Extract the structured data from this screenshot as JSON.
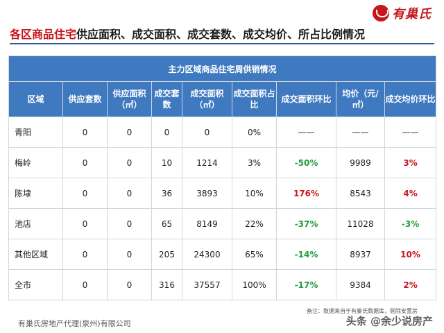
{
  "brand": {
    "logo_text": "有巢氏"
  },
  "title": {
    "highlight": "各区商品住宅",
    "rest": "供应面积、成交面积、成交套数、成交均价、所占比例情况"
  },
  "table": {
    "caption": "主力区域商品住宅周供销情况",
    "headers": [
      "区域",
      "供应套数",
      "供应面积（㎡）",
      "成交套数",
      "成交面积（㎡）",
      "成交面积占比",
      "成交面积环比",
      "均价（元/㎡）",
      "成交均价环比"
    ],
    "rows": [
      {
        "region": "青阳",
        "supply_units": "0",
        "supply_area": "0",
        "deal_units": "0",
        "deal_area": "0",
        "share": "0%",
        "area_mom": "——",
        "area_mom_tone": "",
        "avg_price": "——",
        "price_mom": "——",
        "price_mom_tone": ""
      },
      {
        "region": "梅岭",
        "supply_units": "0",
        "supply_area": "0",
        "deal_units": "10",
        "deal_area": "1214",
        "share": "3%",
        "area_mom": "-50%",
        "area_mom_tone": "neg",
        "avg_price": "9989",
        "price_mom": "3%",
        "price_mom_tone": "pos"
      },
      {
        "region": "陈埭",
        "supply_units": "0",
        "supply_area": "0",
        "deal_units": "36",
        "deal_area": "3893",
        "share": "10%",
        "area_mom": "176%",
        "area_mom_tone": "pos",
        "avg_price": "8543",
        "price_mom": "4%",
        "price_mom_tone": "pos"
      },
      {
        "region": "池店",
        "supply_units": "0",
        "supply_area": "0",
        "deal_units": "65",
        "deal_area": "8149",
        "share": "22%",
        "area_mom": "-37%",
        "area_mom_tone": "neg",
        "avg_price": "11028",
        "price_mom": "-3%",
        "price_mom_tone": "neg"
      },
      {
        "region": "其他区域",
        "supply_units": "0",
        "supply_area": "0",
        "deal_units": "205",
        "deal_area": "24300",
        "share": "65%",
        "area_mom": "-14%",
        "area_mom_tone": "neg",
        "avg_price": "8937",
        "price_mom": "10%",
        "price_mom_tone": "pos"
      },
      {
        "region": "全市",
        "supply_units": "0",
        "supply_area": "0",
        "deal_units": "316",
        "deal_area": "37557",
        "share": "100%",
        "area_mom": "-17%",
        "area_mom_tone": "neg",
        "avg_price": "9384",
        "price_mom": "2%",
        "price_mom_tone": "pos"
      }
    ]
  },
  "footer": {
    "note": "备注：数据来自于有巢氏数据库，剔除安置房",
    "company": "有巢氏房地产代理(泉州)有限公司",
    "watermark": "头条 @余少说房产"
  },
  "colors": {
    "accent_red": "#c8161d",
    "header_blue": "#3f79bf",
    "positive": "#c8161d",
    "negative": "#1f9e3a"
  }
}
